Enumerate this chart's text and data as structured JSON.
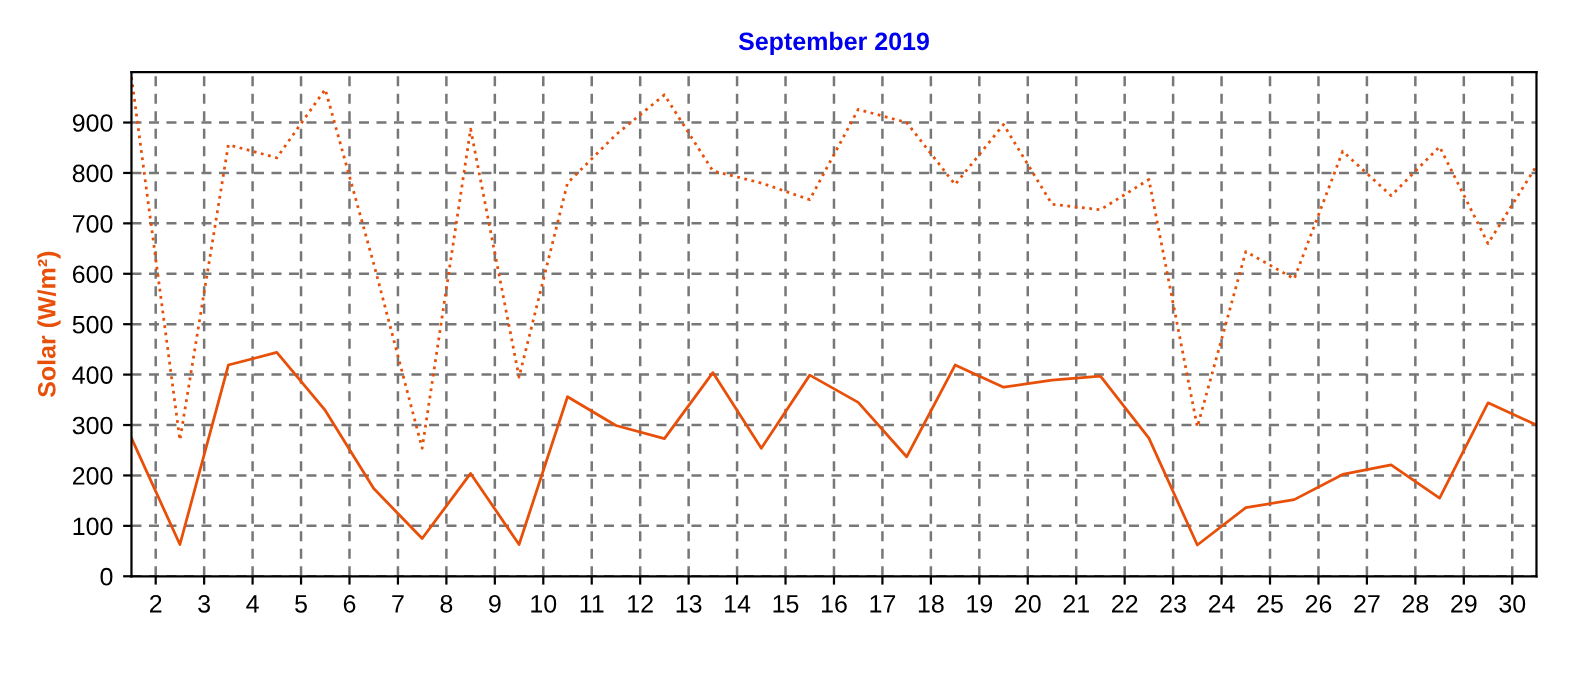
{
  "chart_data": {
    "type": "line",
    "title": "September 2019",
    "ylabel": "Solar (W/m²)",
    "x": [
      1.5,
      2.5,
      3.5,
      4.5,
      5.5,
      6.5,
      7.5,
      8.5,
      9.5,
      10.5,
      11.5,
      12.5,
      13.5,
      14.5,
      15.5,
      16.5,
      17.5,
      18.5,
      19.5,
      20.5,
      21.5,
      22.5,
      23.5,
      24.5,
      25.5,
      26.5,
      27.5,
      28.5,
      29.5,
      30.5
    ],
    "series": [
      {
        "color": "#e8500a",
        "line_style": "dotted",
        "values": [
          990,
          270,
          856,
          830,
          966,
          620,
          254,
          887,
          395,
          780,
          876,
          955,
          804,
          780,
          747,
          926,
          900,
          777,
          896,
          738,
          727,
          787,
          296,
          644,
          590,
          843,
          755,
          852,
          660,
          814
        ]
      },
      {
        "color": "#e8500a",
        "line_style": "solid",
        "values": [
          274,
          63,
          419,
          444,
          329,
          174,
          75,
          204,
          63,
          356,
          299,
          273,
          404,
          254,
          399,
          345,
          237,
          419,
          375,
          389,
          397,
          274,
          62,
          136,
          152,
          202,
          221,
          155,
          344,
          300
        ]
      }
    ],
    "xlim": [
      1.5,
      30.5
    ],
    "xticks": [
      2,
      3,
      4,
      5,
      6,
      7,
      8,
      9,
      10,
      11,
      12,
      13,
      14,
      15,
      16,
      17,
      18,
      19,
      20,
      21,
      22,
      23,
      24,
      25,
      26,
      27,
      28,
      29,
      30
    ],
    "ylim": [
      0,
      1000
    ],
    "yticks": [
      0,
      100,
      200,
      300,
      400,
      500,
      600,
      700,
      800,
      900
    ],
    "grid": true,
    "legend": false,
    "marker": "none"
  }
}
